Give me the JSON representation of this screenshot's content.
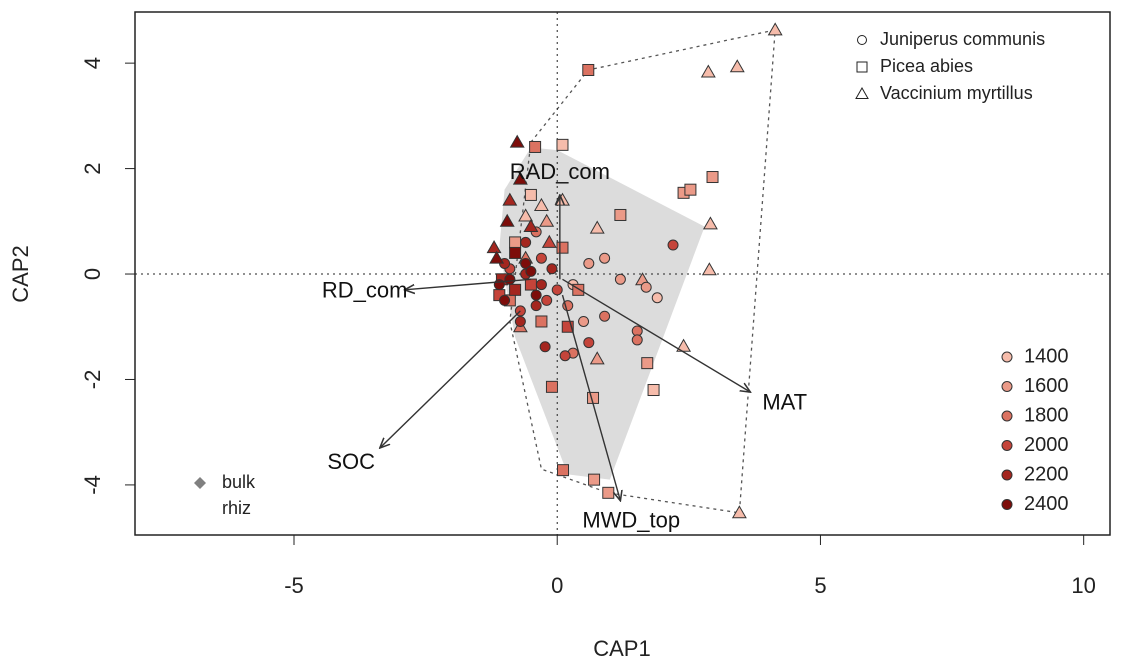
{
  "chart_data": {
    "type": "scatter",
    "x_label": "CAP1",
    "y_label": "CAP2",
    "xlim": [
      -8.02,
      10.5
    ],
    "ylim": [
      -4.95,
      4.97
    ],
    "xticks": [
      -5,
      0,
      5,
      10
    ],
    "yticks": [
      -4,
      -2,
      0,
      2,
      4
    ],
    "reference_lines": true,
    "species_legend": {
      "position": "top-right",
      "entries": [
        {
          "label": "Juniperus communis",
          "marker": "circle"
        },
        {
          "label": "Picea abies",
          "marker": "square"
        },
        {
          "label": "Vaccinium myrtillus",
          "marker": "triangle"
        }
      ]
    },
    "elevation_legend_position": "bottom-right",
    "compartment_legend": {
      "position": "bottom-left",
      "entries": [
        {
          "label": "bulk",
          "color": "#808080"
        },
        {
          "label": "rhiz"
        }
      ]
    },
    "hulls": [
      {
        "style": "shaded",
        "color": "#dcdcdc",
        "x": [
          -0.5,
          0.0,
          2.8,
          1.0,
          0.2,
          -0.8,
          -1.1,
          -1.0
        ],
        "y": [
          2.4,
          2.35,
          0.9,
          -3.9,
          -3.8,
          -1.2,
          0.5,
          1.6
        ]
      },
      {
        "style": "dotted",
        "color": "#555555",
        "x": [
          -0.5,
          0.59,
          4.14,
          3.46,
          0.97,
          -0.3,
          -0.9
        ],
        "y": [
          2.5,
          3.87,
          4.63,
          -4.53,
          -4.15,
          -3.7,
          -0.9
        ]
      }
    ],
    "arrows": [
      {
        "label": "RAD_com",
        "x0": 0.05,
        "y0": -0.1,
        "x1": 0.05,
        "y1": 1.5
      },
      {
        "label": "RD_com",
        "x0": -0.5,
        "y0": -0.1,
        "x1": -2.9,
        "y1": -0.3
      },
      {
        "label": "MAT",
        "x0": 0.1,
        "y0": -0.1,
        "x1": 3.67,
        "y1": -2.24
      },
      {
        "label": "MWD_top",
        "x0": 0.1,
        "y0": -0.4,
        "x1": 1.2,
        "y1": -4.3
      },
      {
        "label": "SOC",
        "x0": -0.7,
        "y0": -0.7,
        "x1": -3.37,
        "y1": -3.3
      }
    ],
    "series": [
      {
        "name": "1400",
        "color": "#f6bcab",
        "x": [
          4.14,
          2.87,
          3.42,
          2.91,
          2.89,
          3.46,
          0.76,
          2.4,
          1.83,
          0.1,
          0.1,
          1.9,
          -0.3,
          -0.5,
          0.3,
          -0.6
        ],
        "y": [
          4.63,
          3.83,
          3.93,
          0.95,
          0.08,
          -4.53,
          0.87,
          -1.37,
          -2.2,
          2.45,
          1.4,
          -0.45,
          1.3,
          1.5,
          -0.2,
          1.1
        ],
        "markers": [
          "triangle",
          "triangle",
          "triangle",
          "triangle",
          "triangle",
          "triangle",
          "triangle",
          "triangle",
          "square",
          "square",
          "triangle",
          "circle",
          "triangle",
          "square",
          "circle",
          "triangle"
        ]
      },
      {
        "name": "1600",
        "color": "#eb9a88",
        "x": [
          2.95,
          2.4,
          2.53,
          1.2,
          1.62,
          1.69,
          1.71,
          0.76,
          0.68,
          0.97,
          0.7,
          0.9,
          0.6,
          1.2,
          -0.2,
          0.5,
          -0.8
        ],
        "y": [
          1.84,
          1.54,
          1.6,
          1.12,
          -0.11,
          -0.25,
          -1.69,
          -1.61,
          -2.35,
          -4.15,
          -3.9,
          0.3,
          0.2,
          -0.1,
          1.0,
          -0.9,
          0.6
        ],
        "markers": [
          "square",
          "square",
          "square",
          "square",
          "triangle",
          "circle",
          "square",
          "triangle",
          "square",
          "square",
          "square",
          "circle",
          "circle",
          "circle",
          "triangle",
          "circle",
          "square"
        ]
      },
      {
        "name": "1800",
        "color": "#db7261",
        "x": [
          0.59,
          -0.42,
          1.52,
          1.52,
          0.11,
          -0.1,
          0.3,
          0.2,
          -0.3,
          -0.6,
          0.4,
          0.9,
          -0.9,
          -0.4,
          0.1,
          -0.7
        ],
        "y": [
          3.87,
          2.41,
          -1.08,
          -1.25,
          -3.72,
          -2.14,
          -1.5,
          -0.6,
          -0.9,
          0.3,
          -0.3,
          -0.8,
          -0.5,
          0.8,
          0.5,
          -1.0
        ],
        "markers": [
          "square",
          "square",
          "circle",
          "circle",
          "square",
          "square",
          "circle",
          "circle",
          "square",
          "triangle",
          "square",
          "circle",
          "square",
          "circle",
          "square",
          "triangle"
        ]
      },
      {
        "name": "2000",
        "color": "#c5443a",
        "x": [
          2.2,
          0.15,
          -0.2,
          -0.5,
          -0.9,
          0.0,
          -1.1,
          -0.3,
          0.2,
          -0.7,
          -0.15,
          0.6
        ],
        "y": [
          0.55,
          -1.55,
          -0.5,
          -0.2,
          0.1,
          -0.3,
          -0.4,
          0.3,
          -1.0,
          -0.7,
          0.6,
          -1.3
        ],
        "markers": [
          "circle",
          "circle",
          "circle",
          "square",
          "circle",
          "circle",
          "square",
          "circle",
          "square",
          "circle",
          "triangle",
          "circle"
        ]
      },
      {
        "name": "2200",
        "color": "#a4261f",
        "x": [
          -0.23,
          -1.0,
          -0.6,
          -0.8,
          -0.4,
          -1.2,
          -0.5,
          -0.9,
          -0.1,
          -0.7,
          -1.05,
          -0.3,
          -0.6
        ],
        "y": [
          -1.38,
          0.2,
          0.0,
          -0.3,
          -0.6,
          0.5,
          0.9,
          1.4,
          0.1,
          -0.9,
          -0.1,
          -0.2,
          0.6
        ],
        "markers": [
          "circle",
          "circle",
          "circle",
          "square",
          "circle",
          "triangle",
          "triangle",
          "triangle",
          "circle",
          "circle",
          "square",
          "circle",
          "circle"
        ]
      },
      {
        "name": "2400",
        "color": "#7d0d0a",
        "x": [
          -0.76,
          -1.15,
          -0.9,
          -0.6,
          -1.0,
          -0.8,
          -0.4,
          -1.1,
          -0.7,
          -0.5,
          -0.95
        ],
        "y": [
          2.5,
          0.3,
          -0.1,
          0.2,
          -0.5,
          0.4,
          -0.4,
          -0.2,
          1.8,
          0.05,
          1.0
        ],
        "markers": [
          "triangle",
          "triangle",
          "circle",
          "circle",
          "circle",
          "square",
          "circle",
          "circle",
          "triangle",
          "circle",
          "triangle"
        ]
      }
    ]
  }
}
